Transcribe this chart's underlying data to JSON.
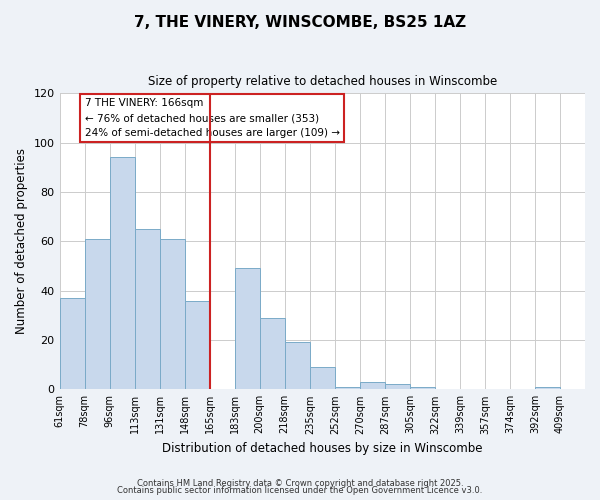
{
  "title": "7, THE VINERY, WINSCOMBE, BS25 1AZ",
  "subtitle": "Size of property relative to detached houses in Winscombe",
  "xlabel": "Distribution of detached houses by size in Winscombe",
  "ylabel": "Number of detached properties",
  "bin_labels": [
    "61sqm",
    "78sqm",
    "96sqm",
    "113sqm",
    "131sqm",
    "148sqm",
    "165sqm",
    "183sqm",
    "200sqm",
    "218sqm",
    "235sqm",
    "252sqm",
    "270sqm",
    "287sqm",
    "305sqm",
    "322sqm",
    "339sqm",
    "357sqm",
    "374sqm",
    "392sqm",
    "409sqm"
  ],
  "bar_values": [
    37,
    61,
    94,
    65,
    61,
    36,
    0,
    49,
    29,
    19,
    9,
    1,
    3,
    2,
    1,
    0,
    0,
    0,
    0,
    1,
    0
  ],
  "bar_color": "#c8d8ec",
  "bar_edge_color": "#7aaac8",
  "vline_x_index": 6,
  "vline_color": "#cc2222",
  "annotation_title": "7 THE VINERY: 166sqm",
  "annotation_line1": "← 76% of detached houses are smaller (353)",
  "annotation_line2": "24% of semi-detached houses are larger (109) →",
  "annotation_box_color": "#ffffff",
  "annotation_box_edge": "#cc2222",
  "ylim": [
    0,
    120
  ],
  "yticks": [
    0,
    20,
    40,
    60,
    80,
    100,
    120
  ],
  "footer_line1": "Contains HM Land Registry data © Crown copyright and database right 2025.",
  "footer_line2": "Contains public sector information licensed under the Open Government Licence v3.0.",
  "background_color": "#eef2f7",
  "plot_background": "#ffffff"
}
